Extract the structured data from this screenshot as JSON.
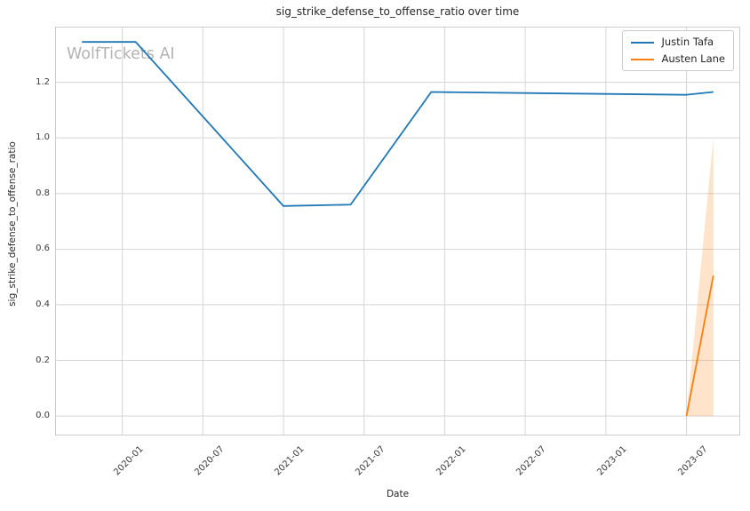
{
  "figure": {
    "watermark": "WolfTickets AI"
  },
  "chart_data": {
    "type": "line",
    "title": "sig_strike_defense_to_offense_ratio over time",
    "xlabel": "Date",
    "ylabel": "sig_strike_defense_to_offense_ratio",
    "grid": true,
    "legend_position": "upper right",
    "xlim": [
      "2019-08",
      "2023-11"
    ],
    "ylim": [
      -0.07,
      1.4
    ],
    "x_tick_labels": [
      "2020-01",
      "2020-07",
      "2021-01",
      "2021-07",
      "2022-01",
      "2022-07",
      "2023-01",
      "2023-07"
    ],
    "y_tick_labels": [
      "0.0",
      "0.2",
      "0.4",
      "0.6",
      "0.8",
      "1.0",
      "1.2"
    ],
    "series": [
      {
        "name": "Justin Tafa",
        "color": "#1f77b4",
        "x": [
          "2019-10",
          "2020-02",
          "2021-01",
          "2021-06",
          "2021-12",
          "2023-07",
          "2023-09"
        ],
        "y": [
          1.345,
          1.345,
          0.755,
          0.76,
          1.165,
          1.155,
          1.165
        ]
      },
      {
        "name": "Austen Lane",
        "color": "#ff7f0e",
        "x": [
          "2023-07",
          "2023-09"
        ],
        "y": [
          0.0,
          0.505
        ],
        "ci_band": {
          "x": [
            "2023-07",
            "2023-09"
          ],
          "y_low": [
            0.0,
            0.0
          ],
          "y_high": [
            0.0,
            1.0
          ],
          "opacity": 0.22
        }
      }
    ],
    "colors": {
      "grid": "#d5d5d5",
      "spine": "#cccccc",
      "text": "#262626",
      "watermark": "#b3b3b3"
    }
  }
}
